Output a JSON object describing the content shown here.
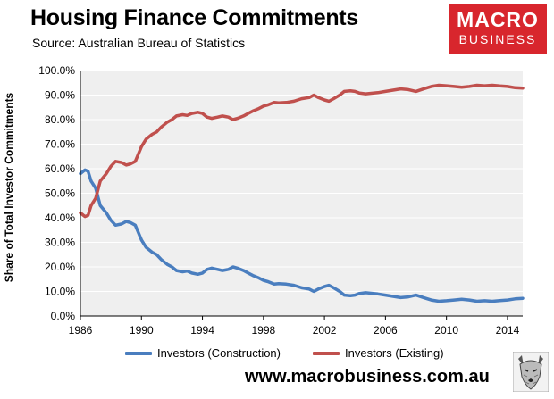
{
  "header": {
    "title": "Housing Finance Commitments",
    "subtitle": "Source: Australian Bureau of Statistics"
  },
  "logo": {
    "line1": "MACRO",
    "line2": "BUSINESS",
    "color": "#d8262d"
  },
  "website": "www.macrobusiness.com.au",
  "mascot_icon": "wolf-head-icon",
  "chart_data": {
    "type": "line",
    "title": "Housing Finance Commitments",
    "xlabel": "",
    "ylabel": "Share of Total Investor Commitments",
    "xlim": [
      1986,
      2015
    ],
    "ylim": [
      0,
      100
    ],
    "x_ticks": [
      "1986",
      "1990",
      "1994",
      "1998",
      "2002",
      "2006",
      "2010",
      "2014"
    ],
    "y_ticks": [
      "0.0%",
      "10.0%",
      "20.0%",
      "30.0%",
      "40.0%",
      "50.0%",
      "60.0%",
      "70.0%",
      "80.0%",
      "90.0%",
      "100.0%"
    ],
    "grid": true,
    "legend": "bottom",
    "series": [
      {
        "name": "Investors (Construction)",
        "color": "#4a7ebf",
        "points": [
          [
            1986.0,
            58
          ],
          [
            1986.3,
            59.5
          ],
          [
            1986.5,
            59
          ],
          [
            1986.7,
            55
          ],
          [
            1987.0,
            52
          ],
          [
            1987.3,
            45
          ],
          [
            1987.7,
            42
          ],
          [
            1988.0,
            39
          ],
          [
            1988.3,
            37
          ],
          [
            1988.7,
            37.5
          ],
          [
            1989.0,
            38.5
          ],
          [
            1989.3,
            38
          ],
          [
            1989.6,
            37
          ],
          [
            1990.0,
            31
          ],
          [
            1990.3,
            28
          ],
          [
            1990.7,
            26
          ],
          [
            1991.0,
            25
          ],
          [
            1991.3,
            23
          ],
          [
            1991.7,
            21
          ],
          [
            1992.0,
            20
          ],
          [
            1992.3,
            18.5
          ],
          [
            1992.7,
            18
          ],
          [
            1993.0,
            18.3
          ],
          [
            1993.3,
            17.5
          ],
          [
            1993.7,
            17
          ],
          [
            1994.0,
            17.5
          ],
          [
            1994.3,
            19
          ],
          [
            1994.6,
            19.5
          ],
          [
            1995.0,
            19
          ],
          [
            1995.3,
            18.5
          ],
          [
            1995.7,
            19
          ],
          [
            1996.0,
            20
          ],
          [
            1996.3,
            19.5
          ],
          [
            1996.7,
            18.5
          ],
          [
            1997.0,
            17.5
          ],
          [
            1997.3,
            16.5
          ],
          [
            1997.7,
            15.5
          ],
          [
            1998.0,
            14.5
          ],
          [
            1998.3,
            14
          ],
          [
            1998.7,
            13
          ],
          [
            1999.0,
            13.2
          ],
          [
            1999.5,
            13
          ],
          [
            2000.0,
            12.5
          ],
          [
            2000.5,
            11.5
          ],
          [
            2001.0,
            11
          ],
          [
            2001.3,
            10
          ],
          [
            2001.6,
            11
          ],
          [
            2002.0,
            12
          ],
          [
            2002.3,
            12.5
          ],
          [
            2002.6,
            11.5
          ],
          [
            2003.0,
            10
          ],
          [
            2003.3,
            8.5
          ],
          [
            2003.7,
            8.3
          ],
          [
            2004.0,
            8.5
          ],
          [
            2004.3,
            9.2
          ],
          [
            2004.7,
            9.5
          ],
          [
            2005.0,
            9.3
          ],
          [
            2005.5,
            9
          ],
          [
            2006.0,
            8.5
          ],
          [
            2006.5,
            8
          ],
          [
            2007.0,
            7.5
          ],
          [
            2007.5,
            7.8
          ],
          [
            2008.0,
            8.5
          ],
          [
            2008.5,
            7.5
          ],
          [
            2009.0,
            6.5
          ],
          [
            2009.5,
            6
          ],
          [
            2010.0,
            6.2
          ],
          [
            2010.5,
            6.5
          ],
          [
            2011.0,
            6.8
          ],
          [
            2011.5,
            6.5
          ],
          [
            2012.0,
            6
          ],
          [
            2012.5,
            6.2
          ],
          [
            2013.0,
            6
          ],
          [
            2013.5,
            6.3
          ],
          [
            2014.0,
            6.5
          ],
          [
            2014.5,
            7
          ],
          [
            2015.0,
            7.2
          ]
        ]
      },
      {
        "name": "Investors (Existing)",
        "color": "#c0504d",
        "points": [
          [
            1986.0,
            42
          ],
          [
            1986.3,
            40.5
          ],
          [
            1986.5,
            41
          ],
          [
            1986.7,
            45
          ],
          [
            1987.0,
            48
          ],
          [
            1987.3,
            55
          ],
          [
            1987.7,
            58
          ],
          [
            1988.0,
            61
          ],
          [
            1988.3,
            63
          ],
          [
            1988.7,
            62.5
          ],
          [
            1989.0,
            61.5
          ],
          [
            1989.3,
            62
          ],
          [
            1989.6,
            63
          ],
          [
            1990.0,
            69
          ],
          [
            1990.3,
            72
          ],
          [
            1990.7,
            74
          ],
          [
            1991.0,
            75
          ],
          [
            1991.3,
            77
          ],
          [
            1991.7,
            79
          ],
          [
            1992.0,
            80
          ],
          [
            1992.3,
            81.5
          ],
          [
            1992.7,
            82
          ],
          [
            1993.0,
            81.7
          ],
          [
            1993.3,
            82.5
          ],
          [
            1993.7,
            83
          ],
          [
            1994.0,
            82.5
          ],
          [
            1994.3,
            81
          ],
          [
            1994.6,
            80.5
          ],
          [
            1995.0,
            81
          ],
          [
            1995.3,
            81.5
          ],
          [
            1995.7,
            81
          ],
          [
            1996.0,
            80
          ],
          [
            1996.3,
            80.5
          ],
          [
            1996.7,
            81.5
          ],
          [
            1997.0,
            82.5
          ],
          [
            1997.3,
            83.5
          ],
          [
            1997.7,
            84.5
          ],
          [
            1998.0,
            85.5
          ],
          [
            1998.3,
            86
          ],
          [
            1998.7,
            87
          ],
          [
            1999.0,
            86.8
          ],
          [
            1999.5,
            87
          ],
          [
            2000.0,
            87.5
          ],
          [
            2000.5,
            88.5
          ],
          [
            2001.0,
            89
          ],
          [
            2001.3,
            90
          ],
          [
            2001.6,
            89
          ],
          [
            2002.0,
            88
          ],
          [
            2002.3,
            87.5
          ],
          [
            2002.6,
            88.5
          ],
          [
            2003.0,
            90
          ],
          [
            2003.3,
            91.5
          ],
          [
            2003.7,
            91.7
          ],
          [
            2004.0,
            91.5
          ],
          [
            2004.3,
            90.8
          ],
          [
            2004.7,
            90.5
          ],
          [
            2005.0,
            90.7
          ],
          [
            2005.5,
            91
          ],
          [
            2006.0,
            91.5
          ],
          [
            2006.5,
            92
          ],
          [
            2007.0,
            92.5
          ],
          [
            2007.5,
            92.2
          ],
          [
            2008.0,
            91.5
          ],
          [
            2008.5,
            92.5
          ],
          [
            2009.0,
            93.5
          ],
          [
            2009.5,
            94
          ],
          [
            2010.0,
            93.8
          ],
          [
            2010.5,
            93.5
          ],
          [
            2011.0,
            93.2
          ],
          [
            2011.5,
            93.5
          ],
          [
            2012.0,
            94
          ],
          [
            2012.5,
            93.8
          ],
          [
            2013.0,
            94
          ],
          [
            2013.5,
            93.7
          ],
          [
            2014.0,
            93.5
          ],
          [
            2014.5,
            93
          ],
          [
            2015.0,
            92.8
          ]
        ]
      }
    ]
  }
}
